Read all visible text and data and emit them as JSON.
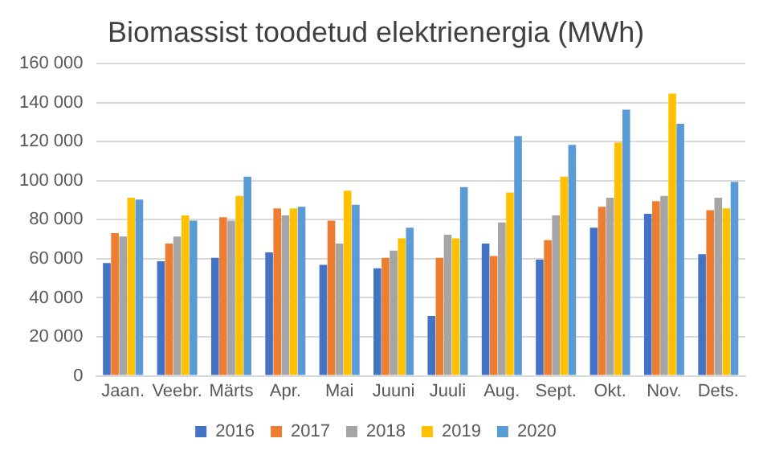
{
  "chart_data": {
    "type": "bar",
    "title": "Biomassist toodetud elektrienergia (MWh)",
    "categories": [
      "Jaan.",
      "Veebr.",
      "Märts",
      "Apr.",
      "Mai",
      "Juuni",
      "Juuli",
      "Aug.",
      "Sept.",
      "Okt.",
      "Nov.",
      "Dets."
    ],
    "series": [
      {
        "name": "2016",
        "color": "#4472c4",
        "values": [
          57800,
          58700,
          60500,
          63300,
          56900,
          55100,
          30700,
          67800,
          59600,
          75900,
          83100,
          62300
        ]
      },
      {
        "name": "2017",
        "color": "#ed7d31",
        "values": [
          73200,
          67800,
          81300,
          85800,
          79500,
          60500,
          60500,
          61400,
          69600,
          86700,
          89500,
          84900
        ]
      },
      {
        "name": "2018",
        "color": "#a5a5a5",
        "values": [
          71400,
          71400,
          79500,
          82200,
          67800,
          64200,
          72300,
          78600,
          82200,
          91300,
          92200,
          91300
        ]
      },
      {
        "name": "2019",
        "color": "#ffc000",
        "values": [
          91300,
          82200,
          92200,
          85800,
          94900,
          70500,
          70500,
          94000,
          102100,
          119600,
          144600,
          85800
        ]
      },
      {
        "name": "2020",
        "color": "#5b9bd5",
        "values": [
          90400,
          79500,
          102100,
          86700,
          87700,
          75900,
          96700,
          122900,
          118400,
          136400,
          129200,
          99400
        ]
      }
    ],
    "ylim": [
      0,
      160000
    ],
    "yticks": [
      0,
      {
        "value": 20000,
        "label": "20 000"
      },
      {
        "value": 40000,
        "label": "40 000"
      },
      {
        "value": 60000,
        "label": "60 000"
      },
      {
        "value": 80000,
        "label": "80 000"
      },
      {
        "value": 100000,
        "label": "100 000"
      },
      {
        "value": 120000,
        "label": "120 000"
      },
      {
        "value": 140000,
        "label": "140 000"
      },
      {
        "value": 160000,
        "label": "160 000"
      }
    ],
    "grid": "y",
    "legend": "bottom"
  }
}
